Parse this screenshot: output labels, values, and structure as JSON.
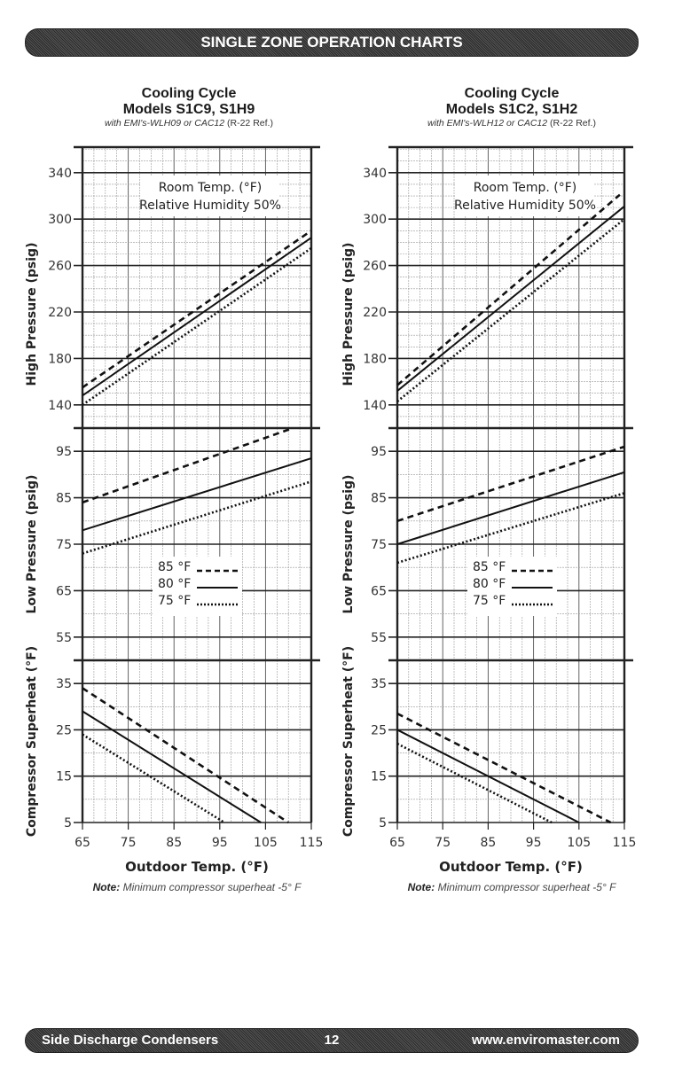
{
  "header": {
    "title": "SINGLE ZONE OPERATION CHARTS"
  },
  "footer": {
    "left": "Side Discharge Condensers",
    "page": "12",
    "right": "www.enviromaster.com"
  },
  "colors": {
    "banner": "#3a3a3a",
    "line": "#1a1a1a",
    "grid": "#888888"
  },
  "chart_data": [
    {
      "type": "line",
      "title": "Cooling Cycle",
      "subtitle": "Models S1C9, S1H9",
      "caption_italic": "with EMI's-WLH09 or CAC12",
      "caption_ref": "(R-22 Ref.)",
      "annotation": [
        "Room Temp. (°F)",
        "Relative Humidity 50%"
      ],
      "xlabel": "Outdoor Temp. (°F)",
      "xticks": [
        "65",
        "75",
        "85",
        "95",
        "105",
        "115"
      ],
      "xlim": [
        65,
        115
      ],
      "note_label": "Note:",
      "note_text": "Minimum compressor superheat -5° F",
      "legend": [
        "85 °F",
        "80 °F",
        "75 °F"
      ],
      "panels": [
        {
          "ylabel": "High Pressure (psig)",
          "ylim": [
            120,
            362
          ],
          "yticks": [
            "340",
            "300",
            "260",
            "220",
            "180",
            "140"
          ],
          "series": [
            {
              "name": "85 °F",
              "style": "dashed",
              "x": [
                65,
                115
              ],
              "y": [
                155,
                290
              ]
            },
            {
              "name": "80 °F",
              "style": "solid",
              "x": [
                65,
                115
              ],
              "y": [
                148,
                284
              ]
            },
            {
              "name": "75 °F",
              "style": "dotted",
              "x": [
                65,
                115
              ],
              "y": [
                140,
                275
              ]
            }
          ]
        },
        {
          "ylabel": "Low Pressure (psig)",
          "ylim": [
            50,
            100
          ],
          "yticks": [
            "95",
            "85",
            "75",
            "65",
            "55"
          ],
          "series": [
            {
              "name": "85 °F",
              "style": "dashed",
              "x": [
                65,
                111
              ],
              "y": [
                84,
                100
              ]
            },
            {
              "name": "80 °F",
              "style": "solid",
              "x": [
                65,
                115
              ],
              "y": [
                78,
                93.5
              ]
            },
            {
              "name": "75 °F",
              "style": "dotted",
              "x": [
                65,
                115
              ],
              "y": [
                73,
                88.5
              ]
            }
          ]
        },
        {
          "ylabel": "Compressor Superheat (°F)",
          "ylim": [
            5,
            40
          ],
          "yticks": [
            "35",
            "25",
            "15",
            "5"
          ],
          "series": [
            {
              "name": "85 °F",
              "style": "dashed",
              "x": [
                65,
                110
              ],
              "y": [
                34,
                5
              ]
            },
            {
              "name": "80 °F",
              "style": "solid",
              "x": [
                65,
                104
              ],
              "y": [
                29,
                5
              ]
            },
            {
              "name": "75 °F",
              "style": "dotted",
              "x": [
                65,
                96
              ],
              "y": [
                24,
                5
              ]
            }
          ]
        }
      ]
    },
    {
      "type": "line",
      "title": "Cooling Cycle",
      "subtitle": "Models S1C2, S1H2",
      "caption_italic": "with EMI's-WLH12 or CAC12",
      "caption_ref": "(R-22 Ref.)",
      "annotation": [
        "Room Temp. (°F)",
        "Relative Humidity 50%"
      ],
      "xlabel": "Outdoor Temp. (°F)",
      "xticks": [
        "65",
        "75",
        "85",
        "95",
        "105",
        "115"
      ],
      "xlim": [
        65,
        115
      ],
      "note_label": "Note:",
      "note_text": "Minimum compressor superheat -5° F",
      "legend": [
        "85 °F",
        "80 °F",
        "75 °F"
      ],
      "panels": [
        {
          "ylabel": "High Pressure (psig)",
          "ylim": [
            120,
            362
          ],
          "yticks": [
            "340",
            "300",
            "260",
            "220",
            "180",
            "140"
          ],
          "series": [
            {
              "name": "85 °F",
              "style": "dashed",
              "x": [
                65,
                114
              ],
              "y": [
                157,
                321
              ]
            },
            {
              "name": "80 °F",
              "style": "solid",
              "x": [
                65,
                115
              ],
              "y": [
                152,
                311
              ]
            },
            {
              "name": "75 °F",
              "style": "dotted",
              "x": [
                65,
                115
              ],
              "y": [
                143,
                300
              ]
            }
          ]
        },
        {
          "ylabel": "Low Pressure (psig)",
          "ylim": [
            50,
            100
          ],
          "yticks": [
            "95",
            "85",
            "75",
            "65",
            "55"
          ],
          "series": [
            {
              "name": "85 °F",
              "style": "dashed",
              "x": [
                65,
                115
              ],
              "y": [
                80,
                96
              ]
            },
            {
              "name": "80 °F",
              "style": "solid",
              "x": [
                65,
                115
              ],
              "y": [
                75,
                90.5
              ]
            },
            {
              "name": "75 °F",
              "style": "dotted",
              "x": [
                65,
                115
              ],
              "y": [
                71,
                86
              ]
            }
          ]
        },
        {
          "ylabel": "Compressor Superheat (°F)",
          "ylim": [
            5,
            40
          ],
          "yticks": [
            "35",
            "25",
            "15",
            "5"
          ],
          "series": [
            {
              "name": "85 °F",
              "style": "dashed",
              "x": [
                65,
                112
              ],
              "y": [
                28.5,
                5
              ]
            },
            {
              "name": "80 °F",
              "style": "solid",
              "x": [
                65,
                105
              ],
              "y": [
                25,
                5
              ]
            },
            {
              "name": "75 °F",
              "style": "dotted",
              "x": [
                65,
                99
              ],
              "y": [
                22,
                5
              ]
            }
          ]
        }
      ]
    }
  ]
}
